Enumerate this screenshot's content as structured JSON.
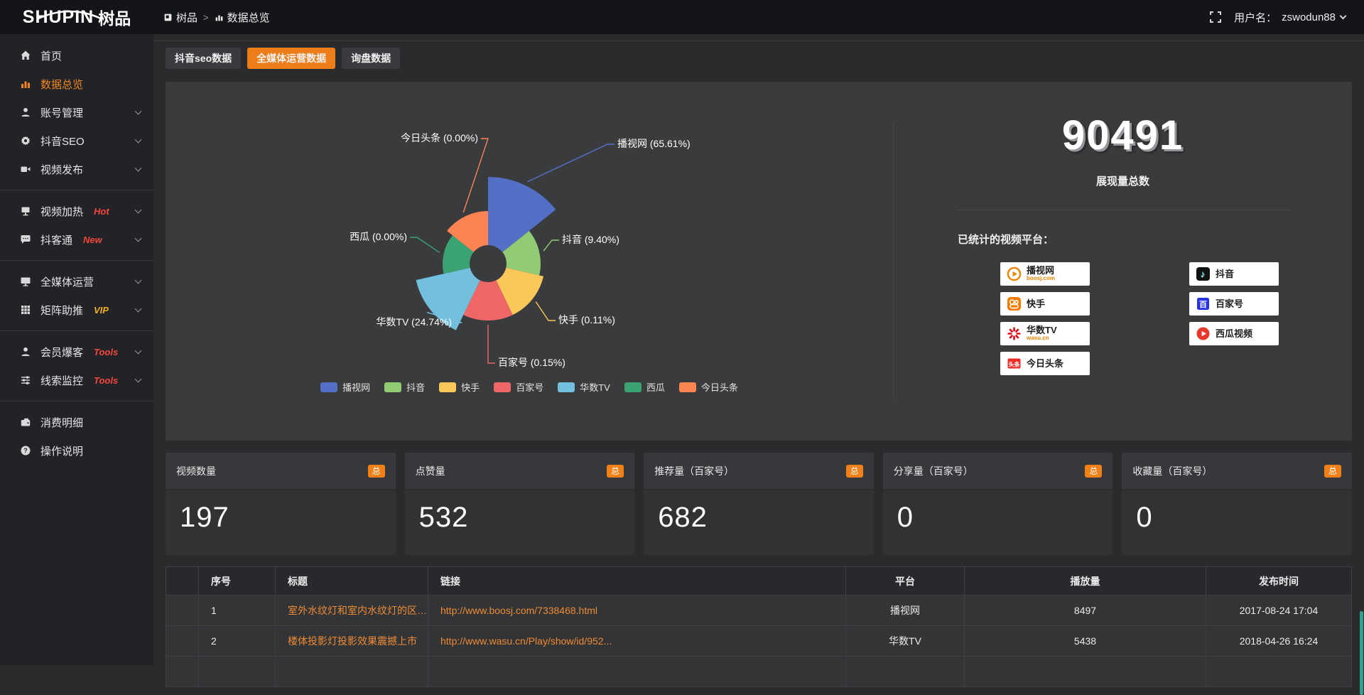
{
  "header": {
    "logo_en": "SHUPIN",
    "logo_cn": "树品",
    "breadcrumb": [
      {
        "icon": "app-icon",
        "label": "树品"
      },
      {
        "icon": "chart-icon",
        "label": "数据总览"
      }
    ],
    "username_label": "用户名：",
    "username": "zswodun88"
  },
  "sidebar": {
    "items": [
      {
        "icon": "home",
        "label": "首页"
      },
      {
        "icon": "bar-chart",
        "label": "数据总览",
        "active": true
      },
      {
        "icon": "user",
        "label": "账号管理",
        "chevron": true
      },
      {
        "icon": "gear",
        "label": "抖音SEO",
        "chevron": true
      },
      {
        "icon": "video",
        "label": "视频发布",
        "chevron": true,
        "divider_after": true
      },
      {
        "icon": "screen-up",
        "label": "视频加热",
        "tag": "Hot",
        "tag_color": "#f5463d",
        "chevron": true
      },
      {
        "icon": "chat",
        "label": "抖客通",
        "tag": "New",
        "tag_color": "#f5463d",
        "chevron": true,
        "divider_after": true
      },
      {
        "icon": "monitor",
        "label": "全媒体运营",
        "chevron": true
      },
      {
        "icon": "grid",
        "label": "矩阵助推",
        "tag": "VIP",
        "tag_color": "#efb020",
        "chevron": true,
        "divider_after": true
      },
      {
        "icon": "user-solid",
        "label": "会员爆客",
        "tag": "Tools",
        "tag_color": "#f5463d",
        "chevron": true
      },
      {
        "icon": "sliders",
        "label": "线索监控",
        "tag": "Tools",
        "tag_color": "#f5463d",
        "chevron": true,
        "divider_after": true
      },
      {
        "icon": "wallet",
        "label": "消费明细"
      },
      {
        "icon": "help",
        "label": "操作说明"
      }
    ]
  },
  "tabs": [
    {
      "label": "抖音seo数据",
      "active": false
    },
    {
      "label": "全媒体运营数据",
      "active": true
    },
    {
      "label": "询盘数据",
      "active": false
    }
  ],
  "chart_data": {
    "type": "pie",
    "subtype": "nightingale-rose",
    "unit": "%",
    "label_format": "{name} ({value}%)",
    "legend_position": "bottom",
    "items": [
      {
        "name": "播视网",
        "value": 65.61,
        "color": "#5470c6"
      },
      {
        "name": "抖音",
        "value": 9.4,
        "color": "#91cc75"
      },
      {
        "name": "快手",
        "value": 0.11,
        "color": "#fac858"
      },
      {
        "name": "百家号",
        "value": 0.15,
        "color": "#ee6666"
      },
      {
        "name": "华数TV",
        "value": 24.74,
        "color": "#73c0de"
      },
      {
        "name": "西瓜",
        "value": 0.0,
        "color": "#3ba272"
      },
      {
        "name": "今日头条",
        "value": 0.0,
        "color": "#fc8452"
      }
    ]
  },
  "summary": {
    "total_value": "90491",
    "total_label": "展现量总数",
    "platforms_title": "已统计的视频平台：",
    "platforms_left": [
      {
        "name": "播视网",
        "sub": "boosj.com",
        "icon": "boosj"
      },
      {
        "name": "快手",
        "sub": "",
        "icon": "kuaishou"
      },
      {
        "name": "华数TV",
        "sub": "wasu.cn",
        "icon": "wasu"
      },
      {
        "name": "今日头条",
        "sub": "",
        "icon": "toutiao"
      }
    ],
    "platforms_right": [
      {
        "name": "抖音",
        "sub": "",
        "icon": "douyin"
      },
      {
        "name": "百家号",
        "sub": "",
        "icon": "baijia"
      },
      {
        "name": "西瓜视频",
        "sub": "",
        "icon": "xigua"
      }
    ]
  },
  "stat_cards": [
    {
      "title": "视频数量",
      "badge": "总",
      "value": "197"
    },
    {
      "title": "点赞量",
      "badge": "总",
      "value": "532"
    },
    {
      "title": "推荐量（百家号）",
      "badge": "总",
      "value": "682"
    },
    {
      "title": "分享量（百家号）",
      "badge": "总",
      "value": "0"
    },
    {
      "title": "收藏量（百家号）",
      "badge": "总",
      "value": "0"
    }
  ],
  "table": {
    "headers": [
      "序号",
      "标题",
      "链接",
      "平台",
      "播放量",
      "发布时间"
    ],
    "rows": [
      {
        "no": "1",
        "title": "室外水纹灯和室内水纹灯的区别和简介",
        "link": "http://www.boosj.com/7338468.html",
        "platform": "播视网",
        "views": "8497",
        "time": "2017-08-24 17:04"
      },
      {
        "no": "2",
        "title": "楼体投影灯投影效果震撼上市",
        "link": "http://www.wasu.cn/Play/show/id/952...",
        "platform": "华数TV",
        "views": "5438",
        "time": "2018-04-26 16:24"
      }
    ]
  }
}
